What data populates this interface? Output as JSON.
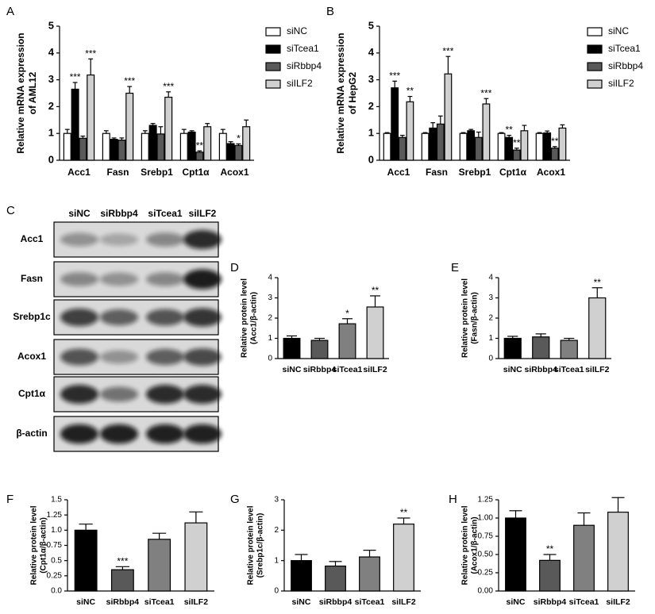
{
  "blot": {
    "panel": "C",
    "lanes": [
      "siNC",
      "siRbbp4",
      "siTcea1",
      "siILF2"
    ],
    "rows": [
      "Acc1",
      "Fasn",
      "Srebp1c",
      "Acox1",
      "Cpt1α",
      "β-actin"
    ]
  },
  "chart_data": [
    {
      "panel": "A",
      "type": "bar",
      "ylabel": [
        "Relative mRNA expression",
        "of AML12"
      ],
      "categories": [
        "Acc1",
        "Fasn",
        "Srebp1",
        "Cpt1α",
        "Acox1"
      ],
      "series": [
        {
          "name": "siNC",
          "color": "#ffffff",
          "values": [
            1,
            1,
            1,
            1,
            1
          ],
          "errors": [
            0.15,
            0.1,
            0.1,
            0.15,
            0.15
          ],
          "significance": [
            null,
            null,
            null,
            null,
            null
          ]
        },
        {
          "name": "siTcea1",
          "color": "#000000",
          "values": [
            2.65,
            0.78,
            1.3,
            1.05,
            0.62
          ],
          "errors": [
            0.25,
            0.05,
            0.07,
            0.05,
            0.07
          ],
          "significance": [
            "***",
            null,
            null,
            null,
            null
          ]
        },
        {
          "name": "siRbbp4",
          "color": "#595959",
          "values": [
            0.82,
            0.75,
            0.98,
            0.3,
            0.55
          ],
          "errors": [
            0.08,
            0.08,
            0.27,
            0.05,
            0.06
          ],
          "significance": [
            null,
            null,
            null,
            "**",
            "*"
          ]
        },
        {
          "name": "siILF2",
          "color": "#d0d0d0",
          "values": [
            3.18,
            2.5,
            2.35,
            1.25,
            1.25
          ],
          "errors": [
            0.6,
            0.25,
            0.2,
            0.12,
            0.25
          ],
          "significance": [
            "***",
            "***",
            "***",
            null,
            null
          ]
        }
      ],
      "ylim": [
        0,
        5
      ],
      "yticks": [
        0,
        1,
        2,
        3,
        4,
        5
      ]
    },
    {
      "panel": "B",
      "type": "bar",
      "ylabel": [
        "Relative mRNA expression",
        "of HepG2"
      ],
      "categories": [
        "Acc1",
        "Fasn",
        "Srebp1",
        "Cpt1α",
        "Acox1"
      ],
      "series": [
        {
          "name": "siNC",
          "color": "#ffffff",
          "values": [
            1,
            1,
            1,
            1,
            1
          ],
          "errors": [
            0.03,
            0.03,
            0.03,
            0.03,
            0.03
          ],
          "significance": [
            null,
            null,
            null,
            null,
            null
          ]
        },
        {
          "name": "siTcea1",
          "color": "#000000",
          "values": [
            2.7,
            1.2,
            1.1,
            0.85,
            1.02
          ],
          "errors": [
            0.25,
            0.2,
            0.05,
            0.08,
            0.07
          ],
          "significance": [
            "***",
            null,
            null,
            "**",
            null
          ]
        },
        {
          "name": "siRbbp4",
          "color": "#595959",
          "values": [
            0.85,
            1.35,
            0.85,
            0.38,
            0.45
          ],
          "errors": [
            0.08,
            0.3,
            0.2,
            0.07,
            0.06
          ],
          "significance": [
            null,
            null,
            null,
            "**",
            "**"
          ]
        },
        {
          "name": "siILF2",
          "color": "#d0d0d0",
          "values": [
            2.18,
            3.22,
            2.1,
            1.1,
            1.2
          ],
          "errors": [
            0.2,
            0.65,
            0.2,
            0.2,
            0.12
          ],
          "significance": [
            "**",
            "***",
            "***",
            null,
            null
          ]
        }
      ],
      "ylim": [
        0,
        5
      ],
      "yticks": [
        0,
        1,
        2,
        3,
        4,
        5
      ]
    },
    {
      "panel": "D",
      "type": "bar",
      "ylabel": [
        "Relative protein level",
        "(Acc1/β-actin)"
      ],
      "categories": [
        "siNC",
        "siRbbp4",
        "siTcea1",
        "siILF2"
      ],
      "colors": [
        "#000000",
        "#595959",
        "#808080",
        "#d0d0d0"
      ],
      "values": [
        1,
        0.9,
        1.72,
        2.55
      ],
      "errors": [
        0.12,
        0.1,
        0.25,
        0.55
      ],
      "significance": [
        null,
        null,
        "*",
        "**"
      ],
      "ylim": [
        0,
        4
      ],
      "yticks": [
        0,
        1,
        2,
        3,
        4
      ]
    },
    {
      "panel": "E",
      "type": "bar",
      "ylabel": [
        "Relative protein level",
        "(Fasn/β-actin)"
      ],
      "categories": [
        "siNC",
        "siRbbp4",
        "siTcea1",
        "siILF2"
      ],
      "colors": [
        "#000000",
        "#595959",
        "#808080",
        "#d0d0d0"
      ],
      "values": [
        1,
        1.07,
        0.9,
        3.0
      ],
      "errors": [
        0.1,
        0.15,
        0.1,
        0.5
      ],
      "significance": [
        null,
        null,
        null,
        "**"
      ],
      "ylim": [
        0,
        4
      ],
      "yticks": [
        0,
        1,
        2,
        3,
        4
      ]
    },
    {
      "panel": "F",
      "type": "bar",
      "ylabel": [
        "Relative protein level",
        "(Cpt1α/β-actin)"
      ],
      "categories": [
        "siNC",
        "siRbbp4",
        "siTcea1",
        "siILF2"
      ],
      "colors": [
        "#000000",
        "#595959",
        "#808080",
        "#d0d0d0"
      ],
      "values": [
        1.0,
        0.35,
        0.85,
        1.12
      ],
      "errors": [
        0.1,
        0.05,
        0.1,
        0.18
      ],
      "significance": [
        null,
        "***",
        null,
        null
      ],
      "ylim": [
        0,
        1.5
      ],
      "yticks": [
        {
          "value": 0,
          "label": "0.0"
        },
        0.25,
        0.5,
        0.75,
        {
          "value": 1,
          "label": "1.0"
        },
        1.25,
        1.5
      ]
    },
    {
      "panel": "G",
      "type": "bar",
      "ylabel": [
        "Relative protein level",
        "(Srebp1c/β-actin)"
      ],
      "categories": [
        "siNC",
        "siRbbp4",
        "siTcea1",
        "siILF2"
      ],
      "colors": [
        "#000000",
        "#595959",
        "#808080",
        "#d0d0d0"
      ],
      "values": [
        1.0,
        0.82,
        1.12,
        2.2
      ],
      "errors": [
        0.2,
        0.15,
        0.22,
        0.2
      ],
      "significance": [
        null,
        null,
        null,
        "**"
      ],
      "ylim": [
        0,
        3
      ],
      "yticks": [
        0,
        1,
        2,
        3
      ]
    },
    {
      "panel": "H",
      "type": "bar",
      "ylabel": [
        "Relative protein level",
        "(Acox1/β-actin)"
      ],
      "categories": [
        "siNC",
        "siRbbp4",
        "siTcea1",
        "siILF2"
      ],
      "colors": [
        "#000000",
        "#595959",
        "#808080",
        "#d0d0d0"
      ],
      "values": [
        1.0,
        0.42,
        0.9,
        1.08
      ],
      "errors": [
        0.1,
        0.08,
        0.17,
        0.2
      ],
      "significance": [
        null,
        "**",
        null,
        null
      ],
      "ylim": [
        0,
        1.25
      ],
      "yticks": [
        {
          "value": 0,
          "label": "0.00"
        },
        0.25,
        {
          "value": 0.5,
          "label": "0.50"
        },
        0.75,
        {
          "value": 1,
          "label": "1.00"
        },
        1.25
      ]
    }
  ]
}
